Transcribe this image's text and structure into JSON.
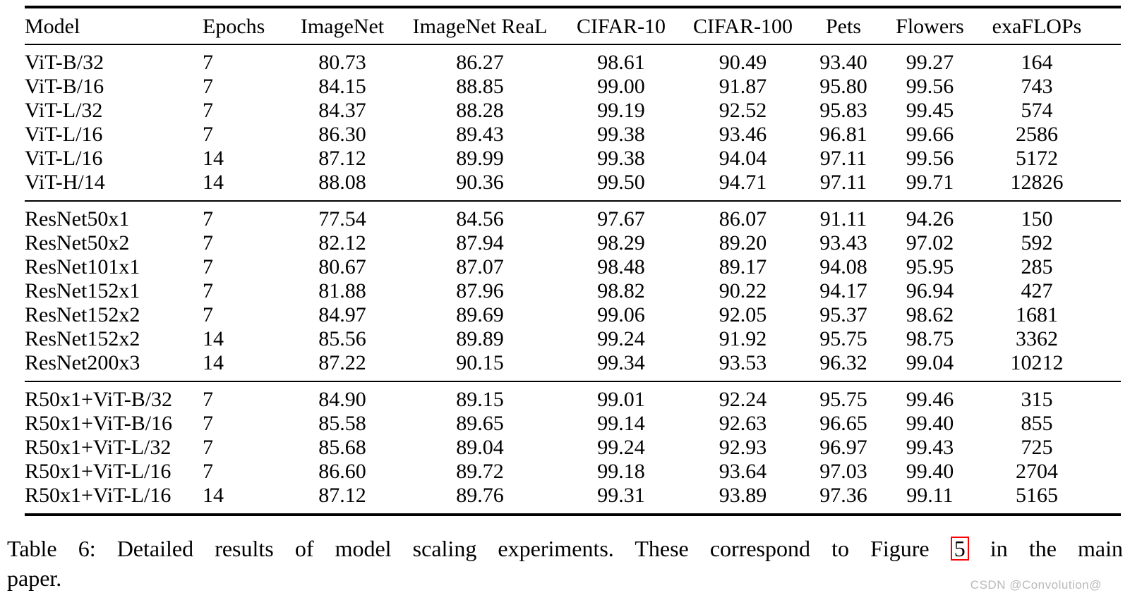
{
  "table": {
    "headers": [
      "Model",
      "Epochs",
      "ImageNet",
      "ImageNet ReaL",
      "CIFAR-10",
      "CIFAR-100",
      "Pets",
      "Flowers",
      "exaFLOPs"
    ],
    "sections": [
      {
        "name": "vit",
        "rows": [
          [
            "ViT-B/32",
            "7",
            "80.73",
            "86.27",
            "98.61",
            "90.49",
            "93.40",
            "99.27",
            "164"
          ],
          [
            "ViT-B/16",
            "7",
            "84.15",
            "88.85",
            "99.00",
            "91.87",
            "95.80",
            "99.56",
            "743"
          ],
          [
            "ViT-L/32",
            "7",
            "84.37",
            "88.28",
            "99.19",
            "92.52",
            "95.83",
            "99.45",
            "574"
          ],
          [
            "ViT-L/16",
            "7",
            "86.30",
            "89.43",
            "99.38",
            "93.46",
            "96.81",
            "99.66",
            "2586"
          ],
          [
            "ViT-L/16",
            "14",
            "87.12",
            "89.99",
            "99.38",
            "94.04",
            "97.11",
            "99.56",
            "5172"
          ],
          [
            "ViT-H/14",
            "14",
            "88.08",
            "90.36",
            "99.50",
            "94.71",
            "97.11",
            "99.71",
            "12826"
          ]
        ]
      },
      {
        "name": "resnet",
        "rows": [
          [
            "ResNet50x1",
            "7",
            "77.54",
            "84.56",
            "97.67",
            "86.07",
            "91.11",
            "94.26",
            "150"
          ],
          [
            "ResNet50x2",
            "7",
            "82.12",
            "87.94",
            "98.29",
            "89.20",
            "93.43",
            "97.02",
            "592"
          ],
          [
            "ResNet101x1",
            "7",
            "80.67",
            "87.07",
            "98.48",
            "89.17",
            "94.08",
            "95.95",
            "285"
          ],
          [
            "ResNet152x1",
            "7",
            "81.88",
            "87.96",
            "98.82",
            "90.22",
            "94.17",
            "96.94",
            "427"
          ],
          [
            "ResNet152x2",
            "7",
            "84.97",
            "89.69",
            "99.06",
            "92.05",
            "95.37",
            "98.62",
            "1681"
          ],
          [
            "ResNet152x2",
            "14",
            "85.56",
            "89.89",
            "99.24",
            "91.92",
            "95.75",
            "98.75",
            "3362"
          ],
          [
            "ResNet200x3",
            "14",
            "87.22",
            "90.15",
            "99.34",
            "93.53",
            "96.32",
            "99.04",
            "10212"
          ]
        ]
      },
      {
        "name": "hybrid",
        "rows": [
          [
            "R50x1+ViT-B/32",
            "7",
            "84.90",
            "89.15",
            "99.01",
            "92.24",
            "95.75",
            "99.46",
            "315"
          ],
          [
            "R50x1+ViT-B/16",
            "7",
            "85.58",
            "89.65",
            "99.14",
            "92.63",
            "96.65",
            "99.40",
            "855"
          ],
          [
            "R50x1+ViT-L/32",
            "7",
            "85.68",
            "89.04",
            "99.24",
            "92.93",
            "96.97",
            "99.43",
            "725"
          ],
          [
            "R50x1+ViT-L/16",
            "7",
            "86.60",
            "89.72",
            "99.18",
            "93.64",
            "97.03",
            "99.40",
            "2704"
          ],
          [
            "R50x1+ViT-L/16",
            "14",
            "87.12",
            "89.76",
            "99.31",
            "93.89",
            "97.36",
            "99.11",
            "5165"
          ]
        ]
      }
    ]
  },
  "caption": {
    "line1_before_ref": "Table 6: Detailed results of model scaling experiments. These correspond to Figure",
    "figure_ref": "5",
    "line1_after_ref": "in the main",
    "line2": "paper."
  },
  "watermark": "CSDN @Convolution@",
  "colors": {
    "figure_ref_box": "#ff0000",
    "watermark_text": "#b9b9b9",
    "text": "#000000",
    "background": "#ffffff"
  }
}
